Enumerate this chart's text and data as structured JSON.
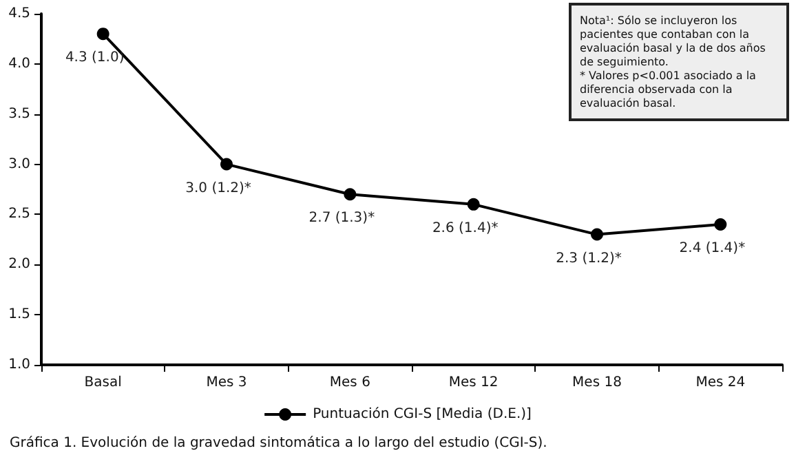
{
  "chart_data": {
    "type": "line",
    "categories": [
      "Basal",
      "Mes 3",
      "Mes 6",
      "Mes 12",
      "Mes 18",
      "Mes 24"
    ],
    "series": [
      {
        "name": "Puntuación CGI-S [Media (D.E.)]",
        "color": "#000000",
        "values": [
          4.3,
          3.0,
          2.7,
          2.6,
          2.3,
          2.4
        ],
        "value_labels": [
          "4.3 (1.0)",
          "3.0 (1.2)*",
          "2.7 (1.3)*",
          "2.6 (1.4)*",
          "2.3 (1.2)*",
          "2.4 (1.4)*"
        ]
      }
    ],
    "ylim": [
      1,
      4.5
    ],
    "yticks": [
      {
        "value": 1,
        "label": "1.0"
      },
      {
        "value": 1.5,
        "label": "1.5"
      },
      {
        "value": 2,
        "label": "2.0"
      },
      {
        "value": 2.5,
        "label": "2.5"
      },
      {
        "value": 3,
        "label": "3.0"
      },
      {
        "value": 3.5,
        "label": "3.5"
      },
      {
        "value": 4,
        "label": "4.0"
      },
      {
        "value": 4.5,
        "label": "4.5"
      }
    ],
    "grid": false,
    "legend": "bottom",
    "marker": "circle",
    "line_style": "solid",
    "annotations": [
      "Nota¹: Sólo se incluyeron los pacientes que contaban con la evaluación basal y la de dos años de seguimiento.\n* Valores p<0.001 asociado a la diferencia observada con la evaluación basal.",
      "Gráfica 1. Evolución de la gravedad sintomática a lo largo del estudio (CGI-S)."
    ]
  }
}
